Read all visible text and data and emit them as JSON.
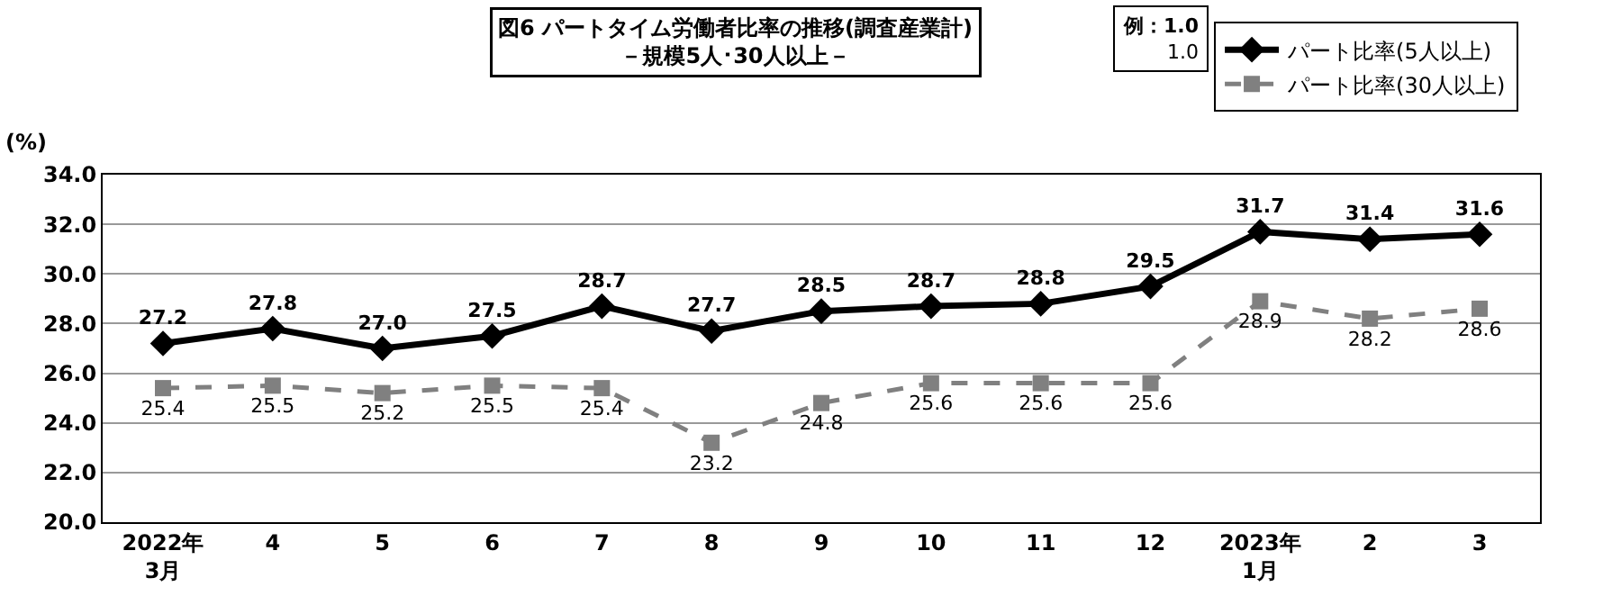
{
  "chart_data": {
    "type": "line",
    "title": "図6 パートタイム労働者比率の推移(調査産業計)\n－規模5人･30人以上－",
    "ylabel": "(%)",
    "categories": [
      "2022年\n3月",
      "4",
      "5",
      "6",
      "7",
      "8",
      "9",
      "10",
      "11",
      "12",
      "2023年\n1月",
      "2",
      "3"
    ],
    "series": [
      {
        "name": "パート比率(5人以上)",
        "color": "#000000",
        "marker": "diamond",
        "line_style": "solid",
        "values": [
          27.2,
          27.8,
          27.0,
          27.5,
          28.7,
          27.7,
          28.5,
          28.7,
          28.8,
          29.5,
          31.7,
          31.4,
          31.6
        ],
        "value_labels": [
          "27.2",
          "27.8",
          "27.0",
          "27.5",
          "28.7",
          "27.7",
          "28.5",
          "28.7",
          "28.8",
          "29.5",
          "31.7",
          "31.4",
          "31.6"
        ]
      },
      {
        "name": "パート比率(30人以上)",
        "color": "#808080",
        "marker": "square",
        "line_style": "dashed",
        "values": [
          25.4,
          25.5,
          25.2,
          25.5,
          25.4,
          23.2,
          24.8,
          25.6,
          25.6,
          25.6,
          28.9,
          28.2,
          28.6
        ],
        "value_labels": [
          "25.4",
          "25.5",
          "25.2",
          "25.5",
          "25.4",
          "23.2",
          "24.8",
          "25.6",
          "25.6",
          "25.6",
          "28.9",
          "28.2",
          "28.6"
        ]
      }
    ],
    "ylim": [
      20,
      34
    ],
    "yticks": [
      {
        "value": 20,
        "label": "20.0"
      },
      {
        "value": 22,
        "label": "22.0"
      },
      {
        "value": 24,
        "label": "24.0"
      },
      {
        "value": 26,
        "label": "26.0"
      },
      {
        "value": 28,
        "label": "28.0"
      },
      {
        "value": 30,
        "label": "30.0"
      },
      {
        "value": 32,
        "label": "32.0"
      },
      {
        "value": 34,
        "label": "34.0"
      }
    ],
    "grid": "y",
    "legend": "top right",
    "annotations": [
      "例：1.0",
      "1.0"
    ]
  }
}
